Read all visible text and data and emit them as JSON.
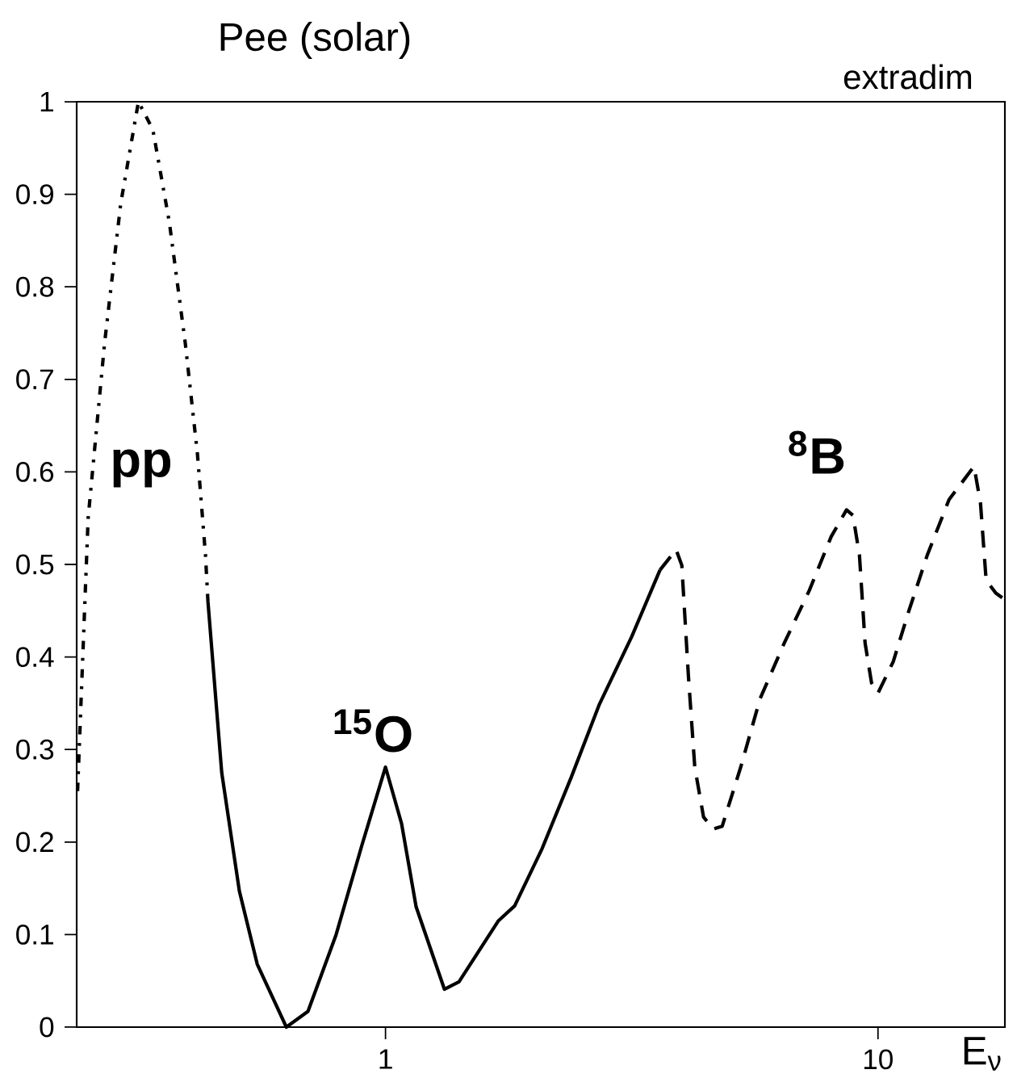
{
  "chart_data": {
    "type": "line",
    "title": "Pee (solar)",
    "xlabel": "E$_{ν}$",
    "annotations": [
      "pp",
      "$^{15}$O",
      "$^{8}$B",
      "extradim"
    ],
    "log": "x",
    "xlim": [
      0.236,
      18.1
    ],
    "ylim": [
      0,
      1
    ],
    "xticks": [
      1,
      10
    ],
    "yticks": [
      0,
      0.1,
      0.2,
      0.3,
      0.4,
      0.5,
      0.6,
      0.7,
      0.8,
      0.9,
      1
    ],
    "marker": "none",
    "series": [
      {
        "color": "#000000",
        "line_style": "dotted",
        "x": [
          0.237,
          0.249,
          0.269,
          0.29,
          0.315,
          0.337,
          0.364,
          0.392,
          0.415,
          0.431,
          0.436
        ],
        "values": [
          0.255,
          0.55,
          0.74,
          0.89,
          1.0,
          0.97,
          0.87,
          0.74,
          0.62,
          0.51,
          0.46
        ]
      },
      {
        "color": "#000000",
        "line_style": "solid",
        "x": [
          0.436,
          0.465,
          0.505,
          0.549,
          0.629,
          0.696,
          0.794,
          0.896,
          1.0,
          1.078,
          1.154,
          1.317,
          1.41,
          1.696,
          1.829,
          2.08,
          2.383,
          2.719,
          3.162,
          3.609
        ],
        "values": [
          0.46,
          0.275,
          0.147,
          0.068,
          0.0,
          0.017,
          0.1,
          0.197,
          0.281,
          0.22,
          0.13,
          0.041,
          0.049,
          0.115,
          0.131,
          0.193,
          0.27,
          0.349,
          0.422,
          0.494
        ]
      },
      {
        "color": "#000000",
        "line_style": "dashed",
        "x": [
          3.609,
          3.892,
          3.997,
          4.12,
          4.246,
          4.424,
          4.63,
          4.826,
          5.264,
          5.763,
          6.452,
          7.256,
          8.034,
          8.632,
          8.896,
          9.17,
          9.415,
          9.703,
          10.0,
          10.74,
          11.54,
          12.59,
          13.94,
          15.67,
          16.15,
          16.58,
          17.35,
          18.1
        ],
        "values": [
          0.494,
          0.516,
          0.499,
          0.381,
          0.281,
          0.227,
          0.214,
          0.217,
          0.281,
          0.355,
          0.415,
          0.472,
          0.53,
          0.559,
          0.553,
          0.51,
          0.415,
          0.372,
          0.361,
          0.395,
          0.449,
          0.51,
          0.57,
          0.606,
          0.566,
          0.483,
          0.469,
          0.462
        ]
      }
    ]
  }
}
